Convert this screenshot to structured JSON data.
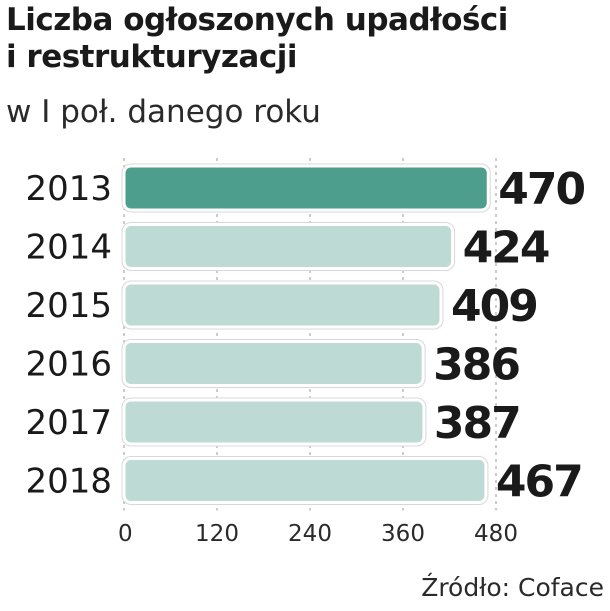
{
  "title": "Liczba ogłoszonych upadłości i restrukturyzacji",
  "subtitle": "w I poł. danego roku",
  "source": "Źródło: Coface",
  "colors": {
    "highlight": "#4e9e8e",
    "bar": "#bddbd4",
    "gridline": "#9a9a9a",
    "text": "#1a1a1a"
  },
  "chart_data": {
    "type": "bar",
    "orientation": "horizontal",
    "categories": [
      "2013",
      "2014",
      "2015",
      "2016",
      "2017",
      "2018"
    ],
    "values": [
      470,
      424,
      409,
      386,
      387,
      467
    ],
    "data_labels": [
      "470",
      "424",
      "409",
      "386",
      "387",
      "467"
    ],
    "highlight_category": "2013",
    "xlim": [
      0,
      480
    ],
    "xticks": [
      "0",
      "120",
      "240",
      "360",
      "480"
    ],
    "grid": true,
    "xlabel": "",
    "ylabel": ""
  }
}
